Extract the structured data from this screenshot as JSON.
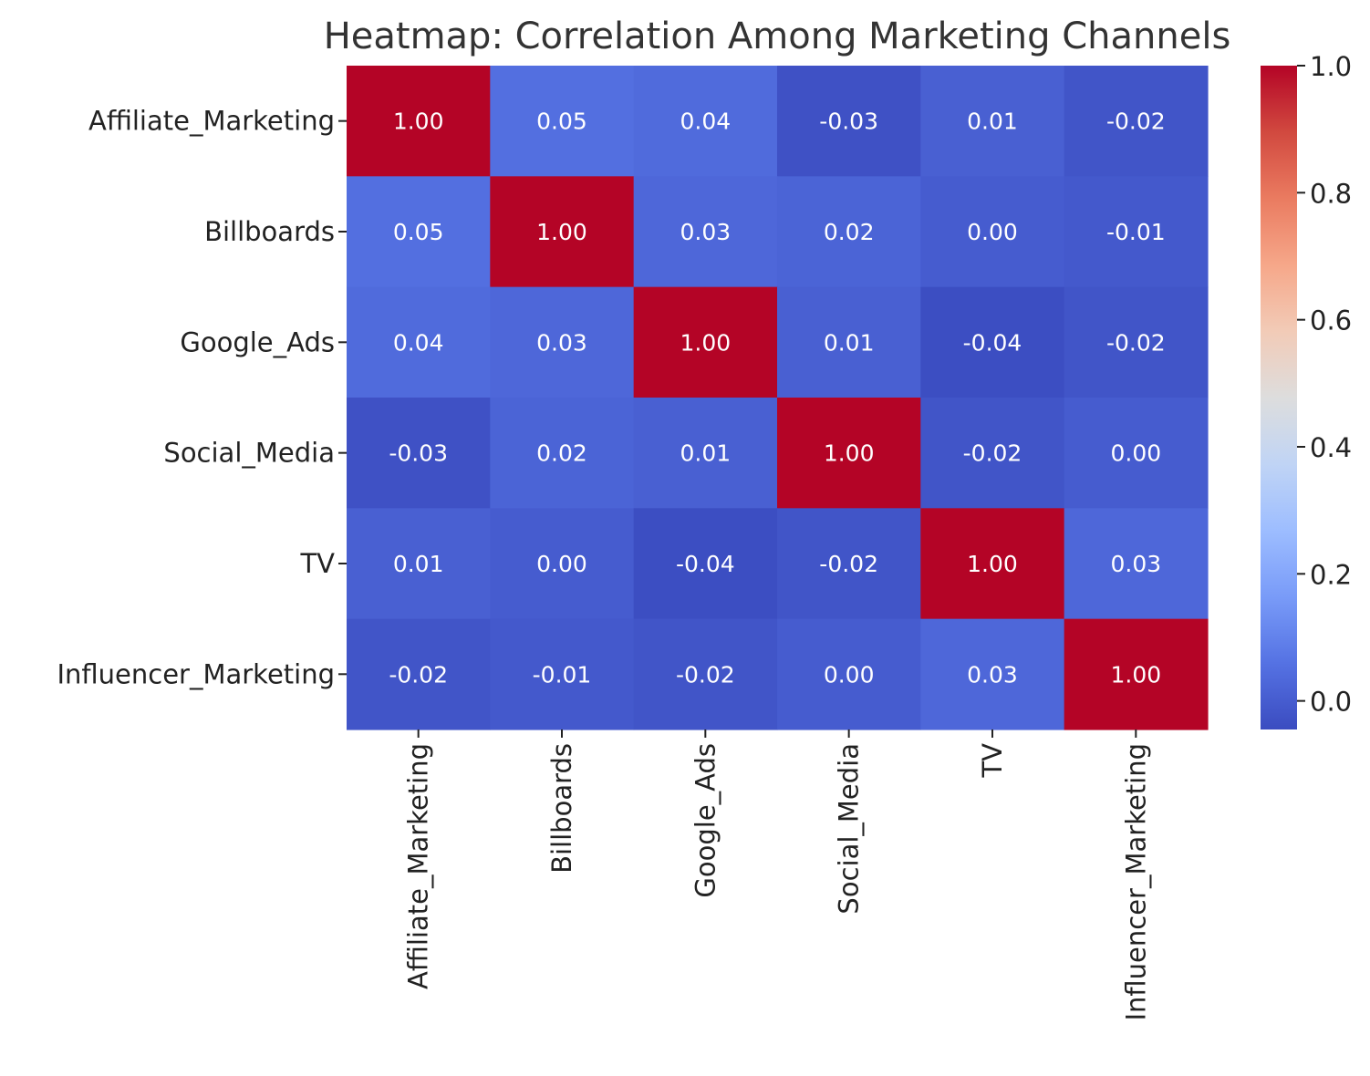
{
  "chart_data": {
    "type": "heatmap",
    "title": "Heatmap: Correlation Among Marketing Channels",
    "row_labels": [
      "Affiliate_Marketing",
      "Billboards",
      "Google_Ads",
      "Social_Media",
      "TV",
      "Influencer_Marketing"
    ],
    "col_labels": [
      "Affiliate_Marketing",
      "Billboards",
      "Google_Ads",
      "Social_Media",
      "TV",
      "Influencer_Marketing"
    ],
    "values": [
      [
        1.0,
        0.05,
        0.04,
        -0.03,
        0.01,
        -0.02
      ],
      [
        0.05,
        1.0,
        0.03,
        0.02,
        0.0,
        -0.01
      ],
      [
        0.04,
        0.03,
        1.0,
        0.01,
        -0.04,
        -0.02
      ],
      [
        -0.03,
        0.02,
        0.01,
        1.0,
        -0.02,
        0.0
      ],
      [
        0.01,
        0.0,
        -0.04,
        -0.02,
        1.0,
        0.03
      ],
      [
        -0.02,
        -0.01,
        -0.02,
        0.0,
        0.03,
        1.0
      ]
    ],
    "cell_labels": [
      [
        "1.00",
        "0.05",
        "0.04",
        "-0.03",
        "0.01",
        "-0.02"
      ],
      [
        "0.05",
        "1.00",
        "0.03",
        "0.02",
        "0.00",
        "-0.01"
      ],
      [
        "0.04",
        "0.03",
        "1.00",
        "0.01",
        "-0.04",
        "-0.02"
      ],
      [
        "-0.03",
        "0.02",
        "0.01",
        "1.00",
        "-0.02",
        "0.00"
      ],
      [
        "0.01",
        "0.00",
        "-0.04",
        "-0.02",
        "1.00",
        "0.03"
      ],
      [
        "-0.02",
        "-0.01",
        "-0.02",
        "0.00",
        "0.03",
        "1.00"
      ]
    ],
    "colormap": "coolwarm",
    "vmin": -0.045,
    "vmax": 1.0,
    "colorbar": {
      "ticks": [
        0.0,
        0.2,
        0.4,
        0.6,
        0.8,
        1.0
      ],
      "tick_labels": [
        "0.0",
        "0.2",
        "0.4",
        "0.6",
        "0.8",
        "1.0"
      ]
    },
    "xlabel": "",
    "ylabel": ""
  }
}
